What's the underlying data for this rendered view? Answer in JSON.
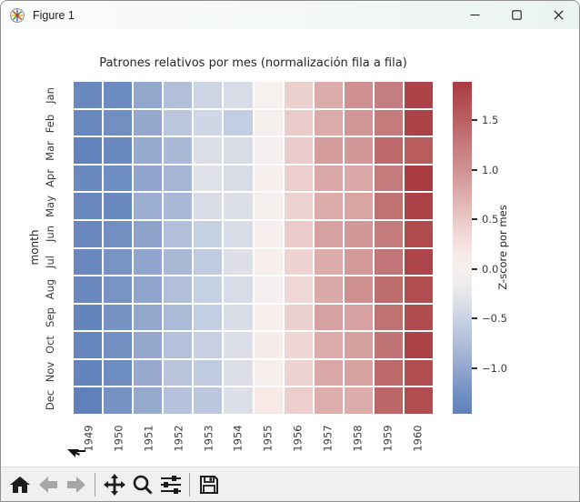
{
  "window": {
    "title": "Figure 1",
    "controls": [
      {
        "name": "minimize"
      },
      {
        "name": "maximize"
      },
      {
        "name": "close"
      }
    ]
  },
  "toolbar": {
    "buttons": [
      {
        "name": "home",
        "enabled": true
      },
      {
        "name": "back",
        "enabled": false
      },
      {
        "name": "forward",
        "enabled": false
      },
      {
        "name": "pan",
        "enabled": true
      },
      {
        "name": "zoom-to-rect",
        "enabled": true
      },
      {
        "name": "configure-subplots",
        "enabled": true
      },
      {
        "name": "save",
        "enabled": true
      }
    ]
  },
  "chart_data": {
    "type": "heatmap",
    "title": "Patrones relativos por mes (normalización fila a fila)",
    "xlabel": "",
    "ylabel": "month",
    "x_categories": [
      "1949",
      "1950",
      "1951",
      "1952",
      "1953",
      "1954",
      "1955",
      "1956",
      "1957",
      "1958",
      "1959",
      "1960"
    ],
    "y_categories": [
      "Jan",
      "Feb",
      "Mar",
      "Apr",
      "May",
      "Jun",
      "Jul",
      "Aug",
      "Sep",
      "Oct",
      "Nov",
      "Dec"
    ],
    "values": [
      [
        -1.34,
        -1.31,
        -1.0,
        -0.73,
        -0.47,
        -0.39,
        0.0,
        0.44,
        0.76,
        1.02,
        1.22,
        1.81
      ],
      [
        -1.36,
        -1.27,
        -0.99,
        -0.64,
        -0.45,
        -0.55,
        -0.02,
        0.49,
        0.77,
        0.97,
        1.25,
        1.82
      ],
      [
        -1.44,
        -1.34,
        -0.96,
        -0.8,
        -0.35,
        -0.37,
        -0.03,
        0.49,
        0.89,
        0.95,
        1.41,
        1.55
      ],
      [
        -1.34,
        -1.28,
        -1.01,
        -0.84,
        -0.31,
        -0.39,
        0.02,
        0.45,
        0.79,
        0.79,
        1.25,
        1.89
      ],
      [
        -1.37,
        -1.34,
        -0.91,
        -0.81,
        -0.39,
        -0.34,
        -0.02,
        0.42,
        0.76,
        0.83,
        1.35,
        1.82
      ],
      [
        -1.37,
        -1.27,
        -1.04,
        -0.73,
        -0.53,
        -0.37,
        0.03,
        0.49,
        0.86,
        0.96,
        1.25,
        1.74
      ],
      [
        -1.35,
        -1.21,
        -1.01,
        -0.81,
        -0.58,
        -0.33,
        0.08,
        0.41,
        0.76,
        0.93,
        1.31,
        1.8
      ],
      [
        -1.36,
        -1.21,
        -1.02,
        -0.73,
        -0.53,
        -0.39,
        -0.03,
        0.36,
        0.78,
        1.03,
        1.39,
        1.71
      ],
      [
        -1.4,
        -1.22,
        -1.0,
        -0.79,
        -0.55,
        -0.37,
        0.08,
        0.44,
        0.86,
        0.86,
        1.35,
        1.73
      ],
      [
        -1.39,
        -1.26,
        -0.99,
        -0.71,
        -0.52,
        -0.35,
        0.07,
        0.37,
        0.76,
        0.87,
        1.32,
        1.83
      ],
      [
        -1.41,
        -1.3,
        -0.95,
        -0.67,
        -0.58,
        -0.33,
        0.05,
        0.42,
        0.79,
        0.85,
        1.42,
        1.72
      ],
      [
        -1.46,
        -1.23,
        -0.97,
        -0.69,
        -0.62,
        -0.33,
        0.16,
        0.45,
        0.75,
        0.76,
        1.45,
        1.72
      ]
    ],
    "colorbar": {
      "label": "Z-score por mes",
      "ticks": [
        1.5,
        1.0,
        0.5,
        0.0,
        -0.5,
        -1.0
      ],
      "tick_labels": [
        "1.5",
        "1.0",
        "0.5",
        "0.0",
        "−0.5",
        "−1.0"
      ],
      "vmin": -1.46,
      "vmax": 1.89
    },
    "colormap_stops": [
      [
        -1.46,
        "#5f80ba"
      ],
      [
        -1.3,
        "#6d8cc0"
      ],
      [
        -1.0,
        "#92a7cc"
      ],
      [
        -0.73,
        "#b2bfd9"
      ],
      [
        -0.5,
        "#c9d2e4"
      ],
      [
        -0.35,
        "#dcdfe8"
      ],
      [
        -0.15,
        "#eeeced"
      ],
      [
        0.0,
        "#f6f0ee"
      ],
      [
        0.16,
        "#f7e9e6"
      ],
      [
        0.45,
        "#eccfcd"
      ],
      [
        0.8,
        "#d9a8a6"
      ],
      [
        1.0,
        "#cf9292"
      ],
      [
        1.25,
        "#c47b7c"
      ],
      [
        1.55,
        "#b85c5e"
      ],
      [
        1.89,
        "#a93b41"
      ]
    ],
    "grid_line_color": "#ffffff",
    "legend_position": "right-colorbar",
    "grid": false
  }
}
